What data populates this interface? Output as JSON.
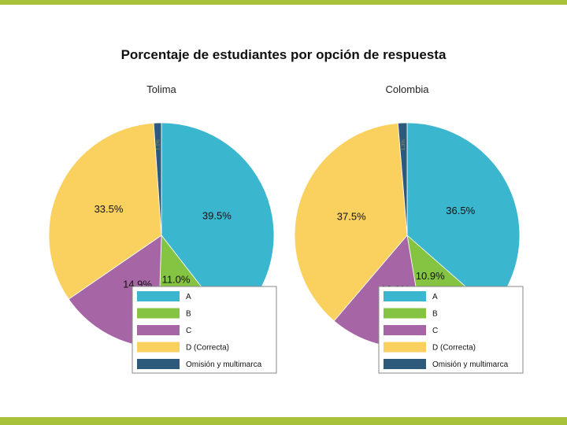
{
  "colors": {
    "accent_band": "#a7c23a",
    "A": "#3bb6cf",
    "B": "#84c442",
    "C": "#a666a5",
    "D": "#fad15f",
    "omision": "#2d5a7b"
  },
  "chart_data": {
    "type": "pie",
    "title": "Porcentaje de estudiantes por opción de respuesta",
    "legend_placement": "bottom-right",
    "legend": [
      "A",
      "B",
      "C",
      "D (Correcta)",
      "Omisión y multimarca"
    ],
    "charts": [
      {
        "subtitle": "Tolima",
        "slices": [
          {
            "key": "A",
            "value": 39.5,
            "label": "39.5%"
          },
          {
            "key": "B",
            "value": 11.0,
            "label": "11.0%"
          },
          {
            "key": "C",
            "value": 14.9,
            "label": "14.9%"
          },
          {
            "key": "D",
            "value": 33.5,
            "label": "33.5%"
          },
          {
            "key": "omision",
            "value": 1.1,
            "label": "1.1%"
          }
        ]
      },
      {
        "subtitle": "Colombia",
        "slices": [
          {
            "key": "A",
            "value": 36.5,
            "label": "36.5%"
          },
          {
            "key": "B",
            "value": 10.9,
            "label": "10.9%"
          },
          {
            "key": "C",
            "value": 13.9,
            "label": "13.9%"
          },
          {
            "key": "D",
            "value": 37.5,
            "label": "37.5%"
          },
          {
            "key": "omision",
            "value": 1.3,
            "label": "1.3%"
          }
        ]
      }
    ]
  }
}
